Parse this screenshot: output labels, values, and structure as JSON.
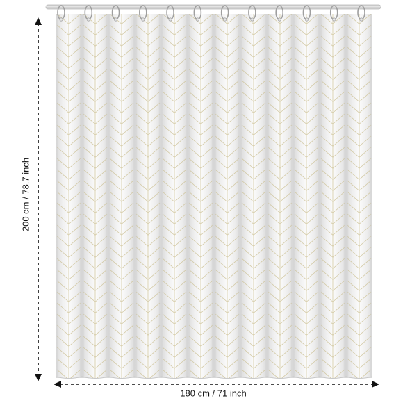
{
  "product": {
    "type": "shower curtain",
    "pattern": "chevron-herringbone",
    "colors": {
      "fabric": "#f3f3f3",
      "fabric_shadow": "#dcdcdc",
      "pattern_line": "#c9bf95",
      "rod": "#cfcfcf",
      "ring": "#a9a9a9",
      "dimension_line": "#111111"
    },
    "ring_count": 12,
    "panel_count": 12
  },
  "dimensions": {
    "height_label": "200 cm / 78.7 inch",
    "width_label": "180 cm / 71 inch"
  }
}
